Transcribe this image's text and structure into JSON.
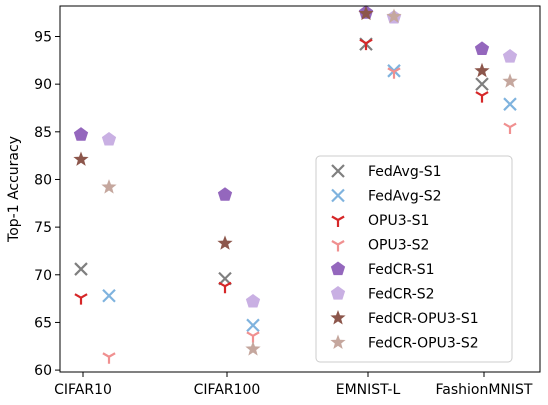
{
  "chart_data": {
    "type": "scatter",
    "ylabel": "Top-1 Accuracy",
    "xlabel": "",
    "categories": [
      "CIFAR10",
      "CIFAR100",
      "EMNIST-L",
      "FashionMNIST"
    ],
    "ylim": [
      59.8,
      98.2
    ],
    "yticks": [
      60,
      65,
      70,
      75,
      80,
      85,
      90,
      95
    ],
    "grid": false,
    "legend_position": "lower-right",
    "series": [
      {
        "name": "FedAvg-S1",
        "marker": "x",
        "color": "#7f7f7f",
        "values": [
          70.6,
          69.6,
          94.2,
          90.0
        ]
      },
      {
        "name": "FedAvg-S2",
        "marker": "x",
        "color": "#7fb3de",
        "values": [
          67.8,
          64.7,
          91.4,
          87.9
        ]
      },
      {
        "name": "OPU3-S1",
        "marker": "tri",
        "color": "#d62728",
        "values": [
          67.6,
          68.8,
          94.3,
          88.8
        ]
      },
      {
        "name": "OPU3-S2",
        "marker": "tri",
        "color": "#f09090",
        "values": [
          61.4,
          63.6,
          91.3,
          85.5
        ]
      },
      {
        "name": "FedCR-S1",
        "marker": "pentagon",
        "color": "#9467bd",
        "values": [
          84.7,
          78.4,
          97.5,
          93.7
        ]
      },
      {
        "name": "FedCR-S2",
        "marker": "pentagon",
        "color": "#c9b0e3",
        "values": [
          84.2,
          67.2,
          97.0,
          92.9
        ]
      },
      {
        "name": "FedCR-OPU3-S1",
        "marker": "star",
        "color": "#8c564b",
        "values": [
          82.1,
          73.3,
          97.4,
          91.4
        ]
      },
      {
        "name": "FedCR-OPU3-S2",
        "marker": "star",
        "color": "#c5a79e",
        "values": [
          79.2,
          62.2,
          97.1,
          90.3
        ]
      }
    ]
  }
}
